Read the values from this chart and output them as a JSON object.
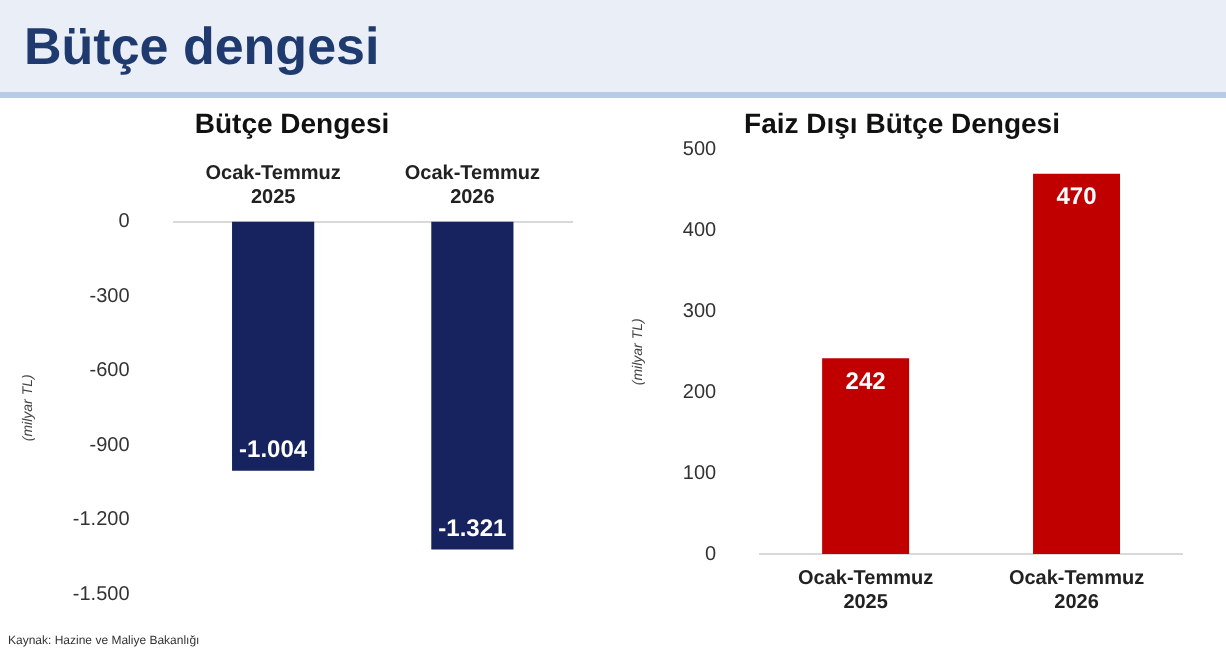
{
  "chart_data": [
    {
      "type": "bar",
      "title": "Bütçe dengesi",
      "subtitle": "Bütçe Dengesi",
      "ylabel": "(milyar TL)",
      "categories": [
        "Ocak-Temmuz 2025",
        "Ocak-Temmuz 2026"
      ],
      "values": [
        -1004,
        -1321
      ],
      "value_labels": [
        "-1.004",
        "-1.321"
      ],
      "color": "#16235f",
      "ylim": [
        -1500,
        0
      ],
      "yticks": [
        {
          "value": -1500,
          "label": "-1.500"
        },
        {
          "value": -1200,
          "label": "-1.200"
        },
        {
          "value": -900,
          "label": "-900"
        },
        {
          "value": -600,
          "label": "-600"
        },
        {
          "value": -300,
          "label": "-300"
        },
        0
      ],
      "grid": false,
      "legend": false,
      "annotations": [
        "Kaynak: Hazine ve Maliye Bakanlığı"
      ]
    },
    {
      "type": "bar",
      "title": "Faiz Dışı Bütçe Dengesi",
      "ylabel": "(milyar TL)",
      "categories": [
        "Ocak-Temmuz 2025",
        "Ocak-Temmuz 2026"
      ],
      "values": [
        242,
        470
      ],
      "data_labels": true,
      "color": "#c00000",
      "ylim": [
        0,
        500
      ],
      "yticks": [
        0,
        100,
        200,
        300,
        400,
        500
      ],
      "grid": false,
      "legend": false
    }
  ]
}
